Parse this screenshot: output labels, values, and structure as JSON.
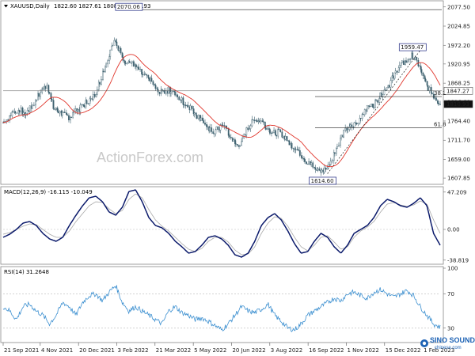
{
  "colors": {
    "candle": "#3f6270",
    "ma": "#e0352b",
    "hline": "#222222",
    "macd": "#0b1a6b",
    "signal": "#a9a9a9",
    "rsi": "#3b8fd0",
    "grid": "#b9b9b9",
    "tag_border": "#1a237e",
    "price_tag_bg": "#111111",
    "price_tag_fg": "#ffffff",
    "logo": "#1e63b5"
  },
  "icons": {
    "symbol_dropdown": "triangle-down-icon",
    "logo": "sino-sound-logo"
  },
  "header": {
    "symbol": "XAUUSD,Daily",
    "ohlc": "1822.60 1827.61 1808.73 1810.93"
  },
  "watermark": "ActionForex.com",
  "logo_text": "SINO SOUND",
  "logo_sub": "chinese.com",
  "chart_data": [
    {
      "type": "candlestick",
      "title": "XAUUSD,Daily",
      "ohlc": "1822.60 1827.61 1808.73 1810.93",
      "ylim": [
        1595,
        2090
      ],
      "y_ticks": [
        2077.5,
        2024.85,
        1972.2,
        1920.95,
        1868.25,
        1816.6,
        1764.4,
        1711.7,
        1659.0,
        1607.85
      ],
      "x_ticks": [
        "21 Sep 2021",
        "4 Nov 2021",
        "20 Dec 2021",
        "3 Feb 2022",
        "21 Mar 2022",
        "5 May 2022",
        "20 Jun 2022",
        "3 Aug 2022",
        "16 Sep 2022",
        "1 Nov 2022",
        "15 Dec 2022",
        "1 Feb 2023"
      ],
      "x_tick_index": [
        0,
        31,
        63,
        95,
        127,
        159,
        191,
        223,
        255,
        287,
        319,
        351
      ],
      "close_series_approx": [
        1760,
        1775,
        1790,
        1795,
        1785,
        1800,
        1825,
        1850,
        1865,
        1800,
        1790,
        1780,
        1775,
        1790,
        1800,
        1815,
        1825,
        1850,
        1900,
        1940,
        1990,
        1955,
        1930,
        1925,
        1910,
        1895,
        1880,
        1870,
        1840,
        1845,
        1850,
        1840,
        1825,
        1810,
        1800,
        1780,
        1770,
        1740,
        1735,
        1745,
        1750,
        1720,
        1700,
        1700,
        1740,
        1760,
        1770,
        1760,
        1740,
        1730,
        1735,
        1720,
        1700,
        1690,
        1670,
        1650,
        1640,
        1630,
        1630,
        1650,
        1680,
        1720,
        1740,
        1750,
        1760,
        1790,
        1800,
        1810,
        1830,
        1850,
        1870,
        1900,
        1920,
        1930,
        1945,
        1920,
        1880,
        1850,
        1830,
        1811
      ],
      "annotations": [
        {
          "label": "2070.06",
          "x_index": 160,
          "value": 2070.06
        },
        {
          "label": "1959.47",
          "x_index": 510,
          "value": 1959.47
        },
        {
          "label": "1614.60",
          "x_index": 399,
          "value": 1614.6
        }
      ],
      "levels": [
        {
          "label": "",
          "value": 2070.06
        },
        {
          "label": "38.2",
          "value": 1831.5
        },
        {
          "label": "61.8",
          "value": 1746.0
        }
      ],
      "price_tags": [
        {
          "label": "1847.27",
          "value": 1847.27
        },
        {
          "label": "1810.93",
          "value": 1810.93
        }
      ],
      "series": [
        {
          "name": "",
          "style": "candles"
        },
        {
          "name": "",
          "style": "moving-average"
        }
      ]
    },
    {
      "type": "line",
      "title": "MACD(12,26,9) -16.115 -10.049",
      "ylim": [
        -42,
        52
      ],
      "y_ticks": [
        47.209,
        0.0,
        -38.819
      ],
      "macd_approx": [
        -10,
        -6,
        0,
        8,
        10,
        5,
        -5,
        -12,
        -15,
        -10,
        5,
        18,
        30,
        40,
        42,
        35,
        22,
        18,
        28,
        48,
        50,
        35,
        15,
        5,
        2,
        -5,
        -15,
        -22,
        -30,
        -28,
        -20,
        -10,
        -8,
        -12,
        -20,
        -32,
        -35,
        -30,
        -15,
        5,
        15,
        20,
        12,
        -2,
        -18,
        -30,
        -28,
        -15,
        -5,
        -10,
        -22,
        -30,
        -20,
        -5,
        0,
        5,
        15,
        30,
        38,
        35,
        30,
        28,
        33,
        40,
        30,
        -5,
        -20
      ],
      "signal_approx": [
        -6,
        -4,
        0,
        4,
        7,
        6,
        0,
        -6,
        -10,
        -10,
        -2,
        10,
        20,
        30,
        35,
        34,
        26,
        20,
        24,
        38,
        45,
        40,
        25,
        12,
        4,
        -2,
        -10,
        -18,
        -25,
        -28,
        -24,
        -15,
        -10,
        -10,
        -16,
        -26,
        -32,
        -31,
        -22,
        -5,
        8,
        16,
        14,
        4,
        -10,
        -22,
        -27,
        -20,
        -10,
        -8,
        -16,
        -25,
        -22,
        -10,
        -2,
        3,
        10,
        22,
        32,
        34,
        31,
        29,
        31,
        36,
        32,
        12,
        -5
      ],
      "series": [
        {
          "name": "",
          "style": "macd"
        },
        {
          "name": "",
          "style": "signal"
        }
      ]
    },
    {
      "type": "line",
      "title": "RSI(14) 31.2648",
      "ylim": [
        15,
        100
      ],
      "y_ticks": [
        100,
        70,
        30
      ],
      "reference_lines": [
        70,
        30
      ],
      "rsi_approx": [
        55,
        50,
        40,
        55,
        58,
        50,
        45,
        35,
        45,
        60,
        55,
        45,
        60,
        68,
        70,
        62,
        72,
        80,
        60,
        50,
        55,
        50,
        45,
        40,
        35,
        50,
        55,
        48,
        45,
        40,
        42,
        38,
        33,
        28,
        35,
        45,
        55,
        50,
        48,
        52,
        58,
        45,
        38,
        30,
        28,
        35,
        45,
        50,
        55,
        60,
        65,
        62,
        70,
        72,
        68,
        65,
        72,
        75,
        70,
        66,
        70,
        74,
        68,
        55,
        45,
        35,
        31
      ],
      "series": [
        {
          "name": "",
          "style": "rsi"
        }
      ]
    }
  ]
}
